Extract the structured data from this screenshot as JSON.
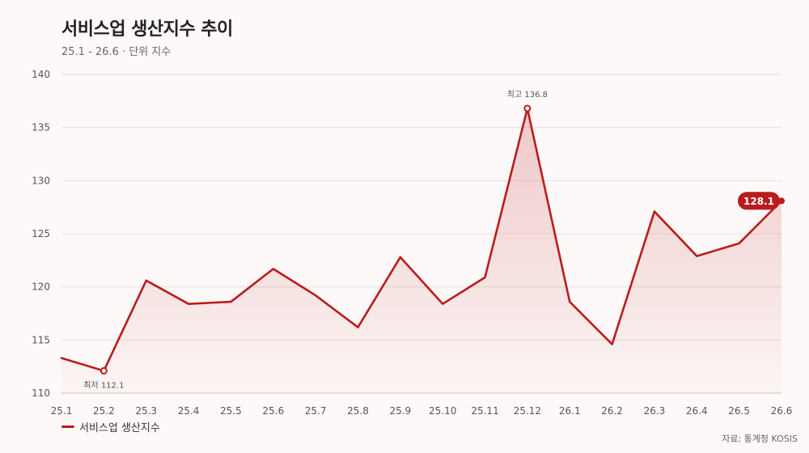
{
  "header": {
    "title": "서비스업 생산지수 추이",
    "subtitle": "25.1 - 26.6 · 단위 지수"
  },
  "legend": {
    "label": "서비스업 생산지수"
  },
  "source": "자료: 통계청 KOSIS",
  "colors": {
    "line": "#b91c1c",
    "badge": "#b91c1c",
    "grid": "#e9dfdd"
  },
  "chart_data": {
    "type": "area",
    "title": "서비스업 생산지수 추이",
    "xlabel": "",
    "ylabel": "",
    "categories": [
      "25.1",
      "25.2",
      "25.3",
      "25.4",
      "25.5",
      "25.6",
      "25.7",
      "25.8",
      "25.9",
      "25.10",
      "25.11",
      "25.12",
      "26.1",
      "26.2",
      "26.3",
      "26.4",
      "26.5",
      "26.6"
    ],
    "series": [
      {
        "name": "서비스업 생산지수",
        "values": [
          113.3,
          112.1,
          120.6,
          118.4,
          118.6,
          121.7,
          119.2,
          116.2,
          122.8,
          118.4,
          120.9,
          136.8,
          118.6,
          114.6,
          127.1,
          122.9,
          124.1,
          128.1
        ]
      }
    ],
    "ylim": [
      110,
      140
    ],
    "yticks": [
      110,
      115,
      120,
      125,
      130,
      135,
      140
    ],
    "grid": true,
    "legend_position": "bottom-left",
    "annotations": {
      "max": {
        "label": "최고 136.8",
        "index": 11
      },
      "min": {
        "label": "최저 112.1",
        "index": 1
      },
      "last": {
        "label": "128.1",
        "index": 17
      }
    }
  }
}
